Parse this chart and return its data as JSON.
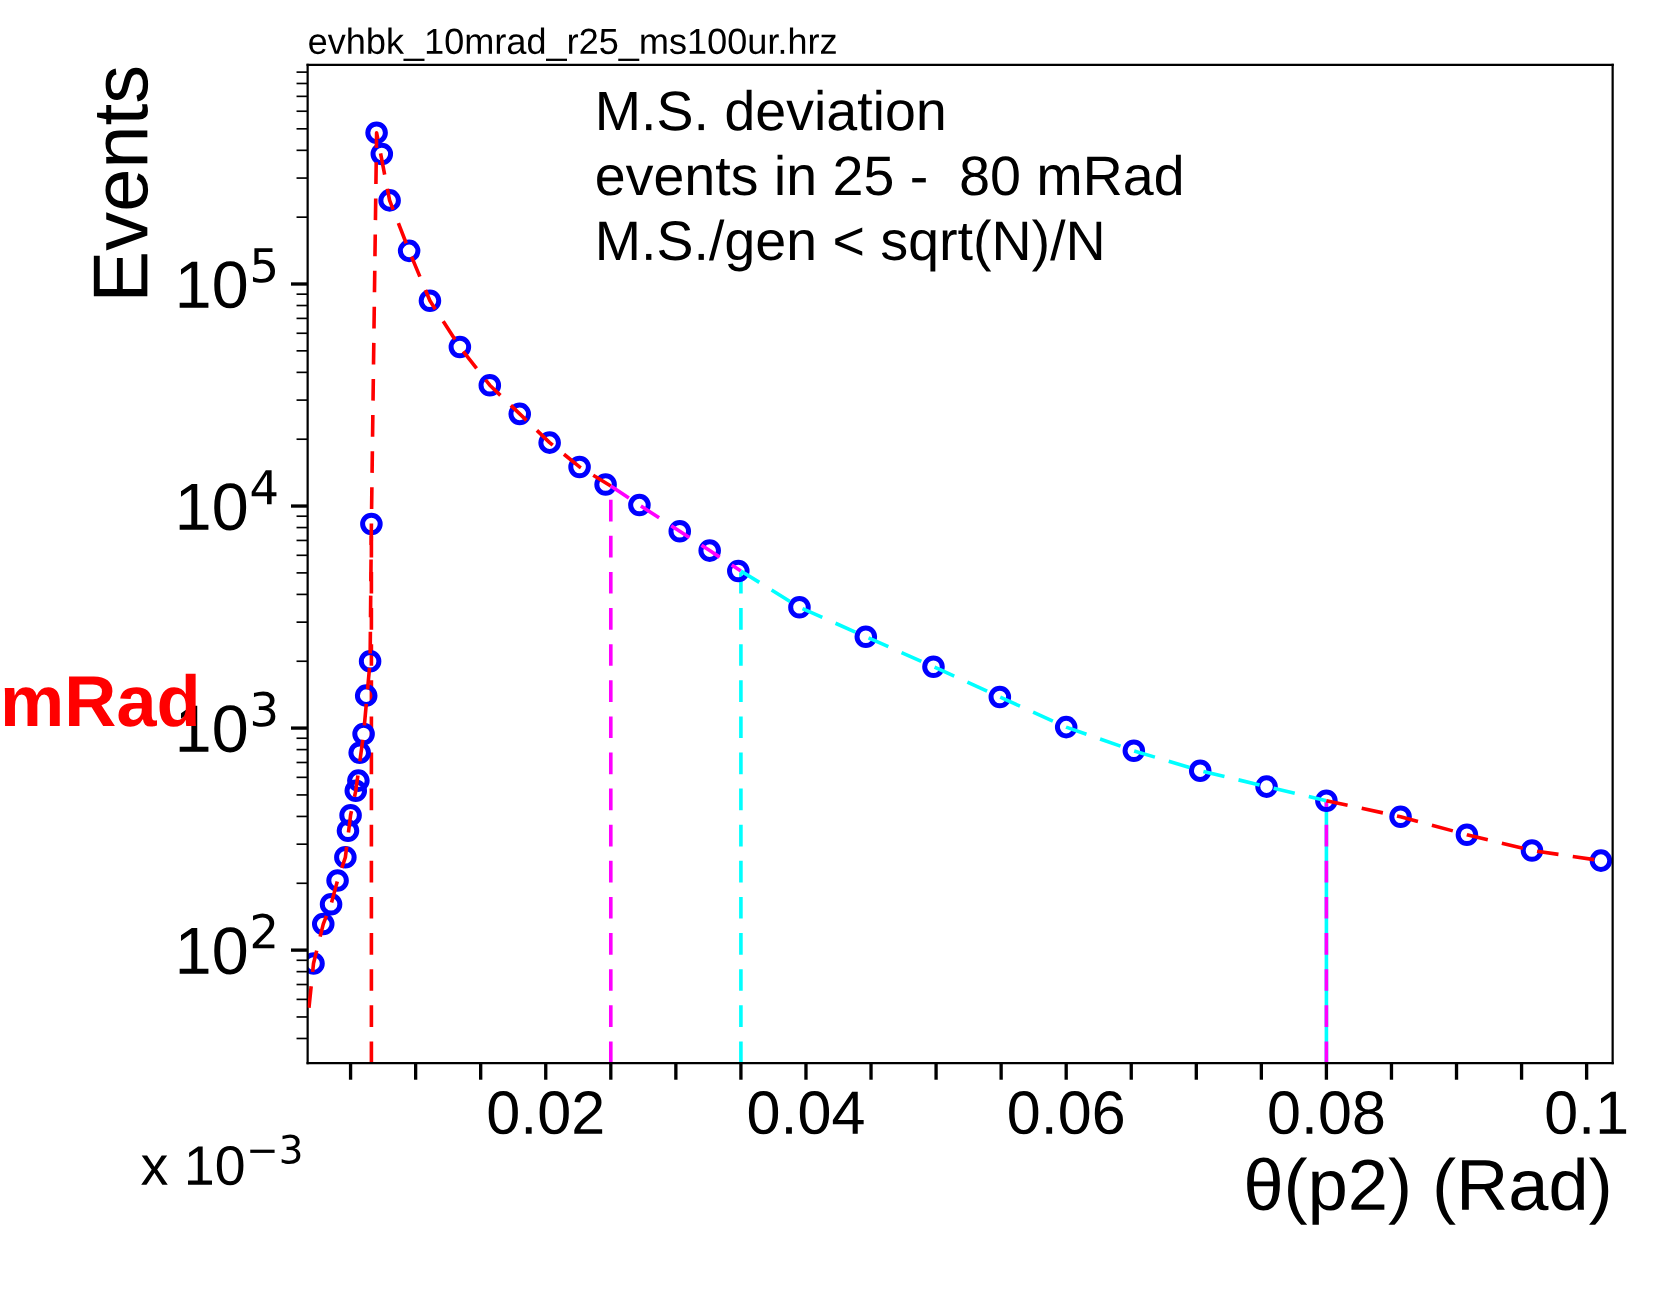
{
  "chart_data": {
    "type": "scatter",
    "title": "evhbk_10mrad_r25_ms100ur.hrz",
    "xlabel": "θ(p2) (Rad)",
    "ylabel": "Events",
    "log": "y",
    "grid": false,
    "legend": false,
    "xlim": [
      0.0017,
      0.102
    ],
    "ylim": [
      31,
      970000
    ],
    "xticks": [
      {
        "value": 0.005,
        "label": null
      },
      {
        "value": 0.01,
        "label": null
      },
      {
        "value": 0.015,
        "label": null
      },
      0.02,
      {
        "value": 0.025,
        "label": null
      },
      {
        "value": 0.03,
        "label": null
      },
      {
        "value": 0.035,
        "label": null
      },
      0.04,
      {
        "value": 0.045,
        "label": null
      },
      {
        "value": 0.05,
        "label": null
      },
      {
        "value": 0.055,
        "label": null
      },
      0.06,
      {
        "value": 0.065,
        "label": null
      },
      {
        "value": 0.07,
        "label": null
      },
      {
        "value": 0.075,
        "label": null
      },
      0.08,
      {
        "value": 0.085,
        "label": null
      },
      {
        "value": 0.09,
        "label": null
      },
      {
        "value": 0.095,
        "label": null
      },
      0.1
    ],
    "yticks": [
      {
        "value": 100,
        "label": "10$^{2}$"
      },
      {
        "value": 1000,
        "label": "10$^{3}$"
      },
      {
        "value": 10000,
        "label": "10$^{4}$"
      },
      {
        "value": 100000,
        "label": "10$^{5}$"
      }
    ],
    "series": [
      {
        "color": "#0000ff",
        "marker": "circle",
        "x": [
          0.00215,
          0.0029,
          0.0035,
          0.004,
          0.0046,
          0.0048,
          0.005,
          0.0054,
          0.0056,
          0.0057,
          0.006,
          0.0062,
          0.0065,
          0.0066,
          0.007,
          0.0074,
          0.008,
          0.0095,
          0.0111,
          0.0134,
          0.0157,
          0.018,
          0.0203,
          0.0226,
          0.0246,
          0.0272,
          0.0303,
          0.0326,
          0.0348,
          0.0395,
          0.0446,
          0.0498,
          0.0549,
          0.06,
          0.0652,
          0.0703,
          0.0754,
          0.08,
          0.0857,
          0.0908,
          0.0958,
          0.1011
        ],
        "values": [
          87,
          131,
          161,
          206,
          262,
          345,
          405,
          522,
          580,
          775,
          940,
          1400,
          2000,
          8300,
          480000,
          385000,
          238000,
          141000,
          84000,
          52000,
          35000,
          26000,
          19300,
          15000,
          12500,
          10100,
          7700,
          6300,
          5100,
          3500,
          2580,
          1890,
          1380,
          1010,
          790,
          643,
          545,
          471,
          399,
          331,
          281,
          253
        ]
      },
      {
        "type": "line",
        "color": "#ff0000",
        "line_style": "dashed",
        "x": [
          0.0018,
          0.00215,
          0.0029,
          0.0035,
          0.004,
          0.0046,
          0.005,
          0.0054,
          0.006,
          0.0065,
          0.0066,
          0.007,
          0.008,
          0.0095,
          0.0111,
          0.0134,
          0.0157,
          0.018,
          0.0203,
          0.0226,
          0.025
        ],
        "values": [
          55,
          87,
          131,
          161,
          206,
          262,
          405,
          522,
          940,
          2000,
          8300,
          480000,
          238000,
          141000,
          84000,
          52000,
          35000,
          26000,
          19300,
          15000,
          12300
        ]
      },
      {
        "type": "line",
        "color": "#ff00ff",
        "line_style": "dashed",
        "x": [
          0.025,
          0.0272,
          0.0303,
          0.0326,
          0.035
        ],
        "values": [
          12300,
          10100,
          7700,
          6300,
          5100
        ]
      },
      {
        "type": "line",
        "color": "#00ffff",
        "line_style": "dashed",
        "x": [
          0.035,
          0.0395,
          0.0446,
          0.0498,
          0.0549,
          0.06,
          0.0652,
          0.0703,
          0.0754,
          0.08
        ],
        "values": [
          5100,
          3500,
          2580,
          1890,
          1380,
          1010,
          790,
          643,
          545,
          471
        ]
      },
      {
        "type": "line",
        "color": "#ff0000",
        "line_style": "dashed",
        "x": [
          0.08,
          0.0857,
          0.0908,
          0.0958,
          0.1011
        ],
        "values": [
          471,
          399,
          331,
          281,
          253
        ]
      }
    ],
    "ref_lines": [
      {
        "axis": "x",
        "value": 0.0066,
        "color": "#ff0000",
        "line_style": "dashed"
      },
      {
        "axis": "x",
        "value": 0.025,
        "color": "#ff00ff",
        "line_style": "dashed"
      },
      {
        "axis": "x",
        "value": 0.035,
        "color": "#00ffff",
        "line_style": "dashed"
      },
      {
        "axis": "x",
        "value": 0.08,
        "color": "#00ffff",
        "line_style": "solid"
      },
      {
        "axis": "x",
        "value": 0.08,
        "color": "#ff00ff",
        "line_style": "dashed"
      }
    ],
    "annotations": [
      "M.S. deviation",
      "events in 25 -  80 mRad",
      "M.S./gen < sqrt(N)/N",
      "x 10$^{−3}$",
      "mRad"
    ]
  }
}
